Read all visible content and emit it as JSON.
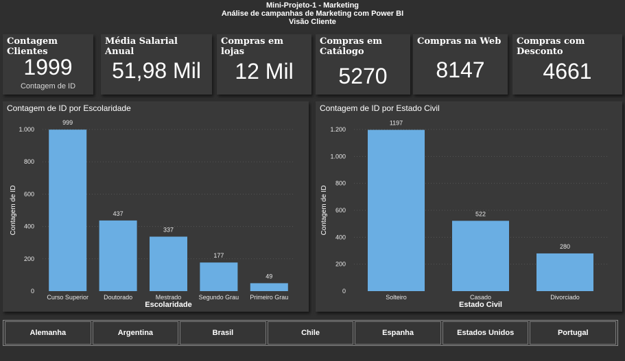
{
  "header": {
    "line1": "Mini-Projeto-1 - Marketing",
    "line2": "Análise de campanhas de Marketing com Power BI",
    "line3": "Visão Cliente"
  },
  "cards": [
    {
      "title": "Contagem Clientes",
      "value": "1999",
      "subtitle": "Contagem de ID"
    },
    {
      "title": "Média Salarial Anual",
      "value": "51,98 Mil"
    },
    {
      "title": "Compras em lojas",
      "value": "12 Mil"
    },
    {
      "title": "Compras em Catálogo",
      "value": "5270"
    },
    {
      "title": "Compras na Web",
      "value": "8147"
    },
    {
      "title": "Compras com Desconto",
      "value": "4661"
    }
  ],
  "colors": {
    "bar": "#6aaee3",
    "background": "#2f2f2f",
    "panel": "#393939",
    "gridline": "#555555"
  },
  "chart_data": [
    {
      "type": "bar",
      "title": "Contagem de ID por Escolaridade",
      "xlabel": "Escolaridade",
      "ylabel": "Contagem de ID",
      "categories": [
        "Curso Superior",
        "Doutorado",
        "Mestrado",
        "Segundo Grau",
        "Primeiro Grau"
      ],
      "values": [
        999,
        437,
        337,
        177,
        49
      ],
      "data_labels": [
        "999",
        "437",
        "337",
        "177",
        "49"
      ],
      "yticks": [
        0,
        200,
        400,
        600,
        800,
        1000
      ],
      "ytick_labels": [
        "0",
        "200",
        "400",
        "600",
        "800",
        "1.000"
      ],
      "ylim": [
        0,
        1000
      ],
      "grid": true
    },
    {
      "type": "bar",
      "title": "Contagem de ID por Estado Civil",
      "xlabel": "Estado Civil",
      "ylabel": "Contagem de ID",
      "categories": [
        "Solteiro",
        "Casado",
        "Divorciado"
      ],
      "values": [
        1197,
        522,
        280
      ],
      "data_labels": [
        "1197",
        "522",
        "280"
      ],
      "yticks": [
        0,
        200,
        400,
        600,
        800,
        1000,
        1200
      ],
      "ytick_labels": [
        "0",
        "200",
        "400",
        "600",
        "800",
        "1.000",
        "1.200"
      ],
      "ylim": [
        0,
        1200
      ],
      "grid": true
    }
  ],
  "slicer": {
    "countries": [
      "Alemanha",
      "Argentina",
      "Brasil",
      "Chile",
      "Espanha",
      "Estados Unidos",
      "Portugal"
    ]
  }
}
